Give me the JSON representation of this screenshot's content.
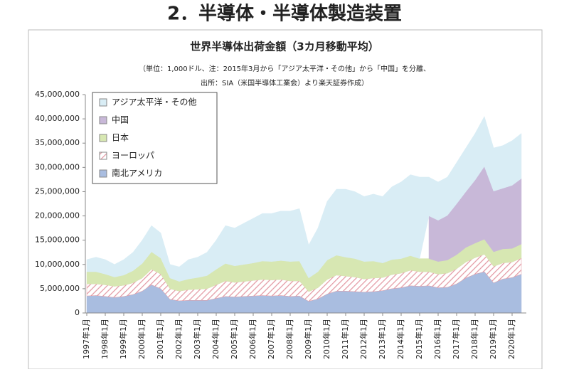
{
  "slide_title": "2．半導体・半導体製造装置",
  "chart_data": {
    "type": "stacked-area",
    "title": "世界半導体出荷金額（3カ月移動平均）",
    "notes": [
      "（単位：1,000ドル、注：2015年3月から「アジア太平洋・その他」から「中国」を分離、",
      "出所：SIA（米国半導体工業会）より楽天証券作成）"
    ],
    "categories": [
      "1997年1月",
      null,
      "1998年1月",
      null,
      "1999年1月",
      null,
      "2000年1月",
      null,
      "2001年1月",
      null,
      "2002年1月",
      null,
      "2003年1月",
      null,
      "2004年1月",
      null,
      "2005年1月",
      null,
      "2006年1月",
      null,
      "2007年1月",
      null,
      "2008年1月",
      null,
      "2009年1月",
      null,
      "2010年1月",
      null,
      "2011年1月",
      null,
      "2012年1月",
      null,
      "2013年1月",
      null,
      "2014年1月",
      null,
      "2015年1月",
      null,
      "2016年1月",
      null,
      "2017年1月",
      null,
      "2018年1月",
      null,
      "2019年1月",
      null,
      "2020年1月",
      null
    ],
    "series": [
      {
        "name": "南北アメリカ",
        "color": "#a9bde0",
        "values": [
          3500000,
          3600000,
          3400000,
          3200000,
          3400000,
          3800000,
          4500000,
          5800000,
          5000000,
          2800000,
          2500000,
          2600000,
          2600000,
          2600000,
          3000000,
          3400000,
          3300000,
          3400000,
          3500000,
          3600000,
          3500000,
          3600000,
          3400000,
          3500000,
          2400000,
          2900000,
          3900000,
          4500000,
          4500000,
          4400000,
          4300000,
          4400000,
          4600000,
          5000000,
          5200000,
          5600000,
          5500000,
          5600000,
          5200000,
          5300000,
          6000000,
          7200000,
          8000000,
          8500000,
          6200000,
          7000000,
          7300000,
          8000000
        ]
      },
      {
        "name": "ヨーロッパ",
        "color": "#e39aa4",
        "pattern": "hatch",
        "values": [
          2500000,
          2400000,
          2400000,
          2300000,
          2300000,
          2400000,
          2700000,
          3200000,
          3000000,
          2200000,
          2000000,
          2200000,
          2300000,
          2400000,
          2800000,
          3200000,
          3000000,
          3100000,
          3200000,
          3300000,
          3300000,
          3300000,
          3200000,
          3100000,
          2000000,
          2300000,
          3000000,
          3300000,
          3100000,
          3000000,
          2700000,
          2800000,
          2700000,
          2900000,
          3000000,
          3200000,
          3000000,
          2900000,
          2800000,
          2900000,
          3100000,
          3300000,
          3400000,
          3600000,
          3400000,
          3300000,
          3200000,
          3300000
        ]
      },
      {
        "name": "日本",
        "color": "#d7e7b2",
        "values": [
          2500000,
          2500000,
          2200000,
          1900000,
          2100000,
          2500000,
          3000000,
          3600000,
          3300000,
          2200000,
          2000000,
          2200000,
          2400000,
          2700000,
          3200000,
          3600000,
          3400000,
          3500000,
          3600000,
          3800000,
          3800000,
          3900000,
          4000000,
          4100000,
          2800000,
          3300000,
          4000000,
          4100000,
          3900000,
          3800000,
          3600000,
          3500000,
          3000000,
          3100000,
          3000000,
          3000000,
          2700000,
          2700000,
          2600000,
          2700000,
          2900000,
          3000000,
          3000000,
          3100000,
          3000000,
          2900000,
          2800000,
          2900000
        ]
      },
      {
        "name": "中国",
        "color": "#c8b8d8",
        "values": [
          null,
          null,
          null,
          null,
          null,
          null,
          null,
          null,
          null,
          null,
          null,
          null,
          null,
          null,
          null,
          null,
          null,
          null,
          null,
          null,
          null,
          null,
          null,
          null,
          null,
          null,
          null,
          null,
          null,
          null,
          null,
          null,
          null,
          null,
          null,
          null,
          null,
          8800000,
          8500000,
          9200000,
          10500000,
          11500000,
          13000000,
          15000000,
          12500000,
          12500000,
          13000000,
          13500000
        ]
      },
      {
        "name": "アジア太平洋・その他",
        "color": "#d9edf5",
        "values": [
          2500000,
          3000000,
          3000000,
          2600000,
          3200000,
          3800000,
          4800000,
          5400000,
          5200000,
          2800000,
          3000000,
          4000000,
          4200000,
          4800000,
          6000000,
          7800000,
          7800000,
          8500000,
          9200000,
          9800000,
          9900000,
          10200000,
          10400000,
          10800000,
          6800000,
          9000000,
          12100000,
          13600000,
          14000000,
          13800000,
          13400000,
          13800000,
          13700000,
          15000000,
          15800000,
          16700000,
          16800000,
          8000000,
          7900000,
          7900000,
          8500000,
          9000000,
          9600000,
          10300000,
          8900000,
          8800000,
          9200000,
          9300000
        ]
      }
    ],
    "ylim": [
      0,
      45000000
    ],
    "yticks": [
      0,
      {
        "value": 5000000,
        "label": "5,000,000"
      },
      {
        "value": 10000000,
        "label": "10,000,000"
      },
      {
        "value": 15000000,
        "label": "15,000,000"
      },
      {
        "value": 20000000,
        "label": "20,000,000"
      },
      {
        "value": 25000000,
        "label": "25,000,000"
      },
      {
        "value": 30000000,
        "label": "30,000,000"
      },
      {
        "value": 35000000,
        "label": "35,000,000"
      },
      {
        "value": 40000000,
        "label": "40,000,000"
      },
      {
        "value": 45000000,
        "label": "45,000,000"
      }
    ],
    "grid": false,
    "legend": "upper-left"
  }
}
